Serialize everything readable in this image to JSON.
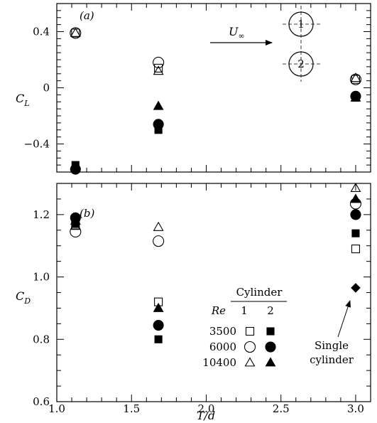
{
  "chart_data": [
    {
      "type": "scatter",
      "panel_label": "(a)",
      "ylabel": "C",
      "ylabel_sub": "L",
      "ylim": [
        -0.6,
        0.6
      ],
      "yticks": [
        0.4,
        0,
        -0.4
      ],
      "ytick_labels": [
        "0.4",
        "0",
        "−0.4"
      ],
      "xlim": [
        1.0,
        3.1
      ],
      "flow_label": "U",
      "flow_sub": "∞",
      "cylinder_labels": [
        "1",
        "2"
      ],
      "series": [
        {
          "re": "3500",
          "cylinder": "1",
          "marker": "square-open",
          "x": [
            1.125,
            1.68,
            3.0
          ],
          "y": [
            0.39,
            0.14,
            0.06
          ]
        },
        {
          "re": "6000",
          "cylinder": "1",
          "marker": "circle-open",
          "x": [
            1.125,
            1.68,
            3.0
          ],
          "y": [
            0.39,
            0.18,
            0.06
          ]
        },
        {
          "re": "10400",
          "cylinder": "1",
          "marker": "triangle-open",
          "x": [
            1.125,
            1.68,
            3.0
          ],
          "y": [
            0.39,
            0.12,
            0.07
          ]
        },
        {
          "re": "3500",
          "cylinder": "2",
          "marker": "square-filled",
          "x": [
            1.125,
            1.68,
            3.0
          ],
          "y": [
            -0.55,
            -0.3,
            -0.07
          ]
        },
        {
          "re": "6000",
          "cylinder": "2",
          "marker": "circle-filled",
          "x": [
            1.125,
            1.68,
            3.0
          ],
          "y": [
            -0.58,
            -0.26,
            -0.06
          ]
        },
        {
          "re": "10400",
          "cylinder": "2",
          "marker": "triangle-filled",
          "x": [
            1.125,
            1.68,
            3.0
          ],
          "y": [
            -0.56,
            -0.13,
            -0.07
          ]
        }
      ]
    },
    {
      "type": "scatter",
      "panel_label": "(b)",
      "ylabel": "C",
      "ylabel_sub": "D",
      "xlabel": "T/d",
      "ylim": [
        0.6,
        1.3
      ],
      "yticks": [
        0.6,
        0.8,
        1.0,
        1.2
      ],
      "ytick_labels": [
        "0.6",
        "0.8",
        "1.0",
        "1.2"
      ],
      "xlim": [
        1.0,
        3.1
      ],
      "xticks": [
        1.0,
        1.5,
        2.0,
        2.5,
        3.0
      ],
      "xtick_labels": [
        "1.0",
        "1.5",
        "2.0",
        "2.5",
        "3.0"
      ],
      "series": [
        {
          "re": "3500",
          "cylinder": "1",
          "marker": "square-open",
          "x": [
            1.125,
            1.68,
            3.0
          ],
          "y": [
            1.165,
            0.92,
            1.09
          ]
        },
        {
          "re": "6000",
          "cylinder": "1",
          "marker": "circle-open",
          "x": [
            1.125,
            1.68,
            3.0
          ],
          "y": [
            1.145,
            1.115,
            1.235
          ]
        },
        {
          "re": "10400",
          "cylinder": "1",
          "marker": "triangle-open",
          "x": [
            1.125,
            1.68,
            3.0
          ],
          "y": [
            1.165,
            1.16,
            1.285
          ]
        },
        {
          "re": "3500",
          "cylinder": "2",
          "marker": "square-filled",
          "x": [
            1.125,
            1.68,
            3.0
          ],
          "y": [
            1.17,
            0.8,
            1.14
          ]
        },
        {
          "re": "6000",
          "cylinder": "2",
          "marker": "circle-filled",
          "x": [
            1.125,
            1.68,
            3.0
          ],
          "y": [
            1.19,
            0.845,
            1.2
          ]
        },
        {
          "re": "10400",
          "cylinder": "2",
          "marker": "triangle-filled",
          "x": [
            1.125,
            1.68,
            3.0
          ],
          "y": [
            1.18,
            0.9,
            1.25
          ]
        },
        {
          "re": "",
          "cylinder": "",
          "marker": "diamond-filled",
          "name": "Single cylinder",
          "x": [
            3.0
          ],
          "y": [
            0.965
          ]
        }
      ],
      "legend": {
        "title": "Cylinder",
        "re_header": "Re",
        "col1": "1",
        "col2": "2",
        "rows": [
          {
            "re": "3500",
            "open": "square-open",
            "filled": "square-filled"
          },
          {
            "re": "6000",
            "open": "circle-open",
            "filled": "circle-filled"
          },
          {
            "re": "10400",
            "open": "triangle-open",
            "filled": "triangle-filled"
          }
        ]
      },
      "annotation": {
        "line1": "Single",
        "line2": "cylinder"
      }
    }
  ]
}
